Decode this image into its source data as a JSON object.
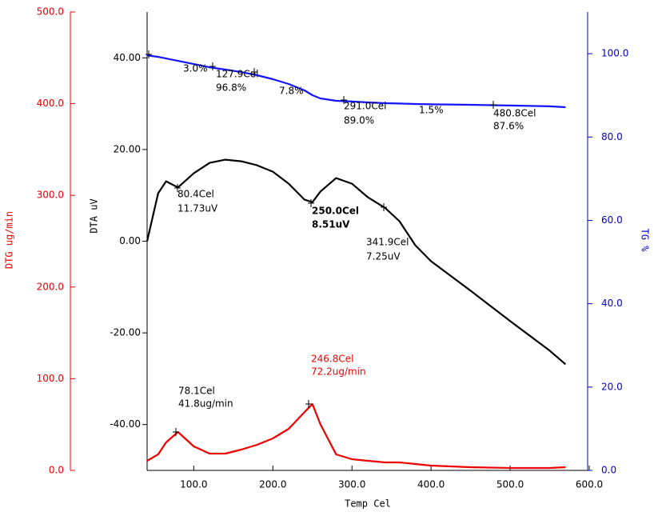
{
  "chart_data": {
    "type": "line",
    "xlabel": "Temp Cel",
    "ylabel": "DTA uV",
    "y2label": "TG %",
    "y3label": "DTG ug/min",
    "x": [
      41,
      55,
      65,
      80,
      100,
      120,
      140,
      160,
      180,
      200,
      220,
      240,
      250,
      260,
      280,
      300,
      320,
      342,
      360,
      380,
      400,
      450,
      500,
      550,
      570
    ],
    "xlim": [
      41,
      600
    ],
    "xticks": [
      {
        "value": 100,
        "label": "100.0"
      },
      {
        "value": 200,
        "label": "200.0"
      },
      {
        "value": 300,
        "label": "300.0"
      },
      {
        "value": 400,
        "label": "400.0"
      },
      {
        "value": 500,
        "label": "500.0"
      },
      {
        "value": 600,
        "label": "600.0"
      }
    ],
    "ylim": [
      -50,
      50
    ],
    "yticks": [
      {
        "value": -40,
        "label": "-40.00"
      },
      {
        "value": -20,
        "label": "-20.00"
      },
      {
        "value": 0,
        "label": "0.00"
      },
      {
        "value": 20,
        "label": "20.00"
      },
      {
        "value": 40,
        "label": "40.00"
      }
    ],
    "y2lim": [
      0,
      110
    ],
    "y2ticks": [
      {
        "value": 0,
        "label": "0.0"
      },
      {
        "value": 20,
        "label": "20.0"
      },
      {
        "value": 40,
        "label": "40.0"
      },
      {
        "value": 60,
        "label": "60.0"
      },
      {
        "value": 80,
        "label": "80.0"
      },
      {
        "value": 100,
        "label": "100.0"
      }
    ],
    "y3lim": [
      0,
      500
    ],
    "y3ticks": [
      {
        "value": 0,
        "label": "0.0"
      },
      {
        "value": 100,
        "label": "100.0"
      },
      {
        "value": 200,
        "label": "200.0"
      },
      {
        "value": 300,
        "label": "300.0"
      },
      {
        "value": 400,
        "label": "400.0"
      },
      {
        "value": 500,
        "label": "500.0"
      }
    ],
    "series": [
      {
        "name": "DTA",
        "color": "#000000",
        "axis": "y",
        "values": [
          0,
          10.46,
          13.07,
          11.73,
          14.81,
          17.08,
          17.78,
          17.43,
          16.56,
          15.16,
          12.55,
          9.06,
          8.51,
          10.81,
          13.77,
          12.55,
          9.59,
          7.25,
          4.36,
          -0.87,
          -4.36,
          -10.81,
          -17.43,
          -23.88,
          -26.84
        ]
      },
      {
        "name": "TG",
        "color": "#1414ff",
        "axis": "y2",
        "values": [
          99.62,
          99.23,
          98.85,
          98.28,
          97.51,
          96.74,
          96.17,
          95.59,
          94.83,
          93.87,
          92.72,
          91.19,
          90.04,
          89.27,
          88.7,
          88.51,
          88.31,
          88.12,
          88.03,
          87.93,
          87.84,
          87.74,
          87.55,
          87.36,
          87.16
        ]
      },
      {
        "name": "DTG",
        "color": "#ee0000",
        "axis": "y3",
        "values": [
          10.46,
          17.44,
          30.51,
          41.85,
          26.16,
          18.31,
          18.31,
          22.67,
          27.9,
          34.87,
          45.34,
          63.64,
          72.36,
          50.57,
          17.44,
          12.21,
          10.46,
          8.72,
          8.72,
          6.97,
          5.23,
          3.49,
          2.62,
          2.62,
          3.49
        ]
      }
    ],
    "annotations": [
      "3.0%",
      "127.9Cel",
      "96.8%",
      "7.8%",
      "291.0Cel",
      "89.0%",
      "1.5%",
      "480.8Cel",
      "87.6%",
      "80.4Cel",
      "11.73uV",
      "250.0Cel",
      "8.51uV",
      "341.9Cel",
      "7.25uV",
      "78.1Cel",
      "41.8ug/min",
      "246.8Cel",
      "72.2ug/min"
    ]
  }
}
